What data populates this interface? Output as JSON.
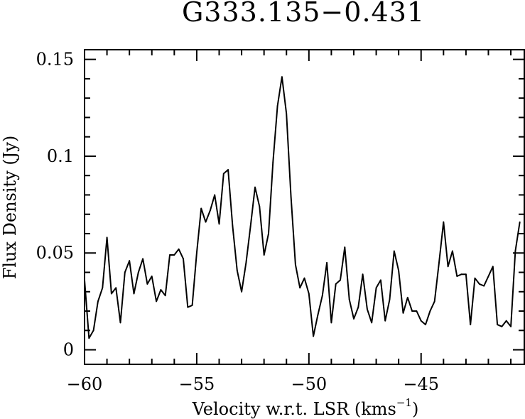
{
  "chart_data": {
    "type": "line",
    "title": "G333.135−0.431",
    "xlabel": "Velocity w.r.t. LSR (kms",
    "xlabel_sup": "−1",
    "xlabel_close": ")",
    "ylabel": "Flux Density (Jy)",
    "xlim": [
      -60,
      -40.4
    ],
    "ylim": [
      -0.0075,
      0.155
    ],
    "x_ticks": [
      {
        "value": -60,
        "label": "−60"
      },
      {
        "value": -55,
        "label": "−55"
      },
      {
        "value": -50,
        "label": "−50"
      },
      {
        "value": -45,
        "label": "−45"
      }
    ],
    "y_ticks": [
      {
        "value": 0,
        "label": "0"
      },
      {
        "value": 0.05,
        "label": "0.05"
      },
      {
        "value": 0.1,
        "label": "0.1"
      },
      {
        "value": 0.15,
        "label": "0.15"
      }
    ],
    "grid": false,
    "line_color": "#000000",
    "series": [
      {
        "x": [
          -60.0,
          -59.8,
          -59.6,
          -59.4,
          -59.2,
          -59.0,
          -58.8,
          -58.6,
          -58.4,
          -58.2,
          -58.0,
          -57.8,
          -57.6,
          -57.4,
          -57.2,
          -57.0,
          -56.8,
          -56.6,
          -56.4,
          -56.2,
          -56.0,
          -55.8,
          -55.6,
          -55.4,
          -55.2,
          -55.0,
          -54.8,
          -54.6,
          -54.4,
          -54.2,
          -54.0,
          -53.8,
          -53.6,
          -53.4,
          -53.2,
          -53.0,
          -52.8,
          -52.6,
          -52.4,
          -52.2,
          -52.0,
          -51.8,
          -51.6,
          -51.4,
          -51.2,
          -51.0,
          -50.8,
          -50.6,
          -50.4,
          -50.2,
          -50.0,
          -49.8,
          -49.6,
          -49.4,
          -49.2,
          -49.0,
          -48.8,
          -48.6,
          -48.4,
          -48.2,
          -48.0,
          -47.8,
          -47.6,
          -47.4,
          -47.2,
          -47.0,
          -46.8,
          -46.6,
          -46.4,
          -46.2,
          -46.0,
          -45.8,
          -45.6,
          -45.4,
          -45.2,
          -45.0,
          -44.8,
          -44.6,
          -44.4,
          -44.2,
          -44.0,
          -43.8,
          -43.6,
          -43.4,
          -43.2,
          -43.0,
          -42.8,
          -42.6,
          -42.4,
          -42.2,
          -42.0,
          -41.8,
          -41.6,
          -41.4,
          -41.2,
          -41.0,
          -40.8,
          -40.6
        ],
        "values": [
          0.036,
          0.006,
          0.01,
          0.025,
          0.032,
          0.058,
          0.029,
          0.032,
          0.014,
          0.04,
          0.046,
          0.029,
          0.04,
          0.047,
          0.034,
          0.038,
          0.025,
          0.031,
          0.028,
          0.049,
          0.049,
          0.052,
          0.047,
          0.022,
          0.023,
          0.05,
          0.073,
          0.066,
          0.072,
          0.08,
          0.065,
          0.091,
          0.093,
          0.064,
          0.041,
          0.03,
          0.045,
          0.064,
          0.084,
          0.074,
          0.049,
          0.06,
          0.097,
          0.126,
          0.141,
          0.122,
          0.079,
          0.044,
          0.032,
          0.037,
          0.029,
          0.007,
          0.018,
          0.028,
          0.045,
          0.014,
          0.034,
          0.036,
          0.053,
          0.026,
          0.016,
          0.022,
          0.039,
          0.021,
          0.014,
          0.032,
          0.036,
          0.015,
          0.026,
          0.051,
          0.041,
          0.019,
          0.027,
          0.02,
          0.02,
          0.015,
          0.013,
          0.02,
          0.025,
          0.045,
          0.066,
          0.043,
          0.051,
          0.038,
          0.039,
          0.039,
          0.013,
          0.037,
          0.034,
          0.033,
          0.038,
          0.043,
          0.013,
          0.012,
          0.015,
          0.012,
          0.051,
          0.066
        ]
      }
    ]
  }
}
